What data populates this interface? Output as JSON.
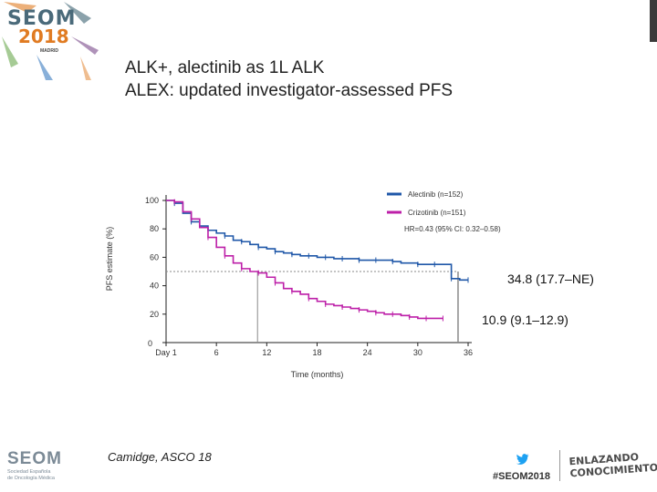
{
  "branding": {
    "logo_line1": "SEOM",
    "logo_line2": "2018",
    "logo_city": "MADRID",
    "org_name": "SEOM",
    "org_sub1": "Sociedad Española",
    "org_sub2": "de Oncología Médica",
    "hashtag": "#SEOM2018",
    "motto_line1": "ENLAZANDO",
    "motto_line2": "CONOCIMIENTO"
  },
  "title": {
    "line1": "ALK+, alectinib as 1L ALK",
    "line2": "ALEX: updated investigator-assessed PFS"
  },
  "citation": "Camidge, ASCO 18",
  "colors": {
    "alectinib": "#1f57a8",
    "crizotinib": "#bd1fa8",
    "median_line": "#8a8a8a"
  },
  "chart_data": {
    "type": "line",
    "xlabel": "Time (months)",
    "ylabel": "PFS estimate (%)",
    "xlim": [
      0,
      36
    ],
    "ylim": [
      0,
      100
    ],
    "xticks": [
      0,
      6,
      12,
      18,
      24,
      30,
      36
    ],
    "xtick_labels": [
      "Day 1",
      "6",
      "12",
      "18",
      "24",
      "30",
      "36"
    ],
    "yticks": [
      0,
      20,
      40,
      60,
      80,
      100
    ],
    "ytick_labels": [
      "0",
      "20",
      "40",
      "60",
      "80",
      "100"
    ],
    "legend_position": "top-right",
    "series": [
      {
        "name": "Alectinib (n=152)",
        "x": [
          0,
          1,
          2,
          3,
          4,
          5,
          6,
          7,
          8,
          9,
          10,
          11,
          12,
          13,
          14,
          15,
          16,
          17,
          18,
          19,
          20,
          21,
          22,
          23,
          24,
          25,
          26,
          27,
          28,
          30,
          31,
          32,
          33,
          34,
          35,
          36
        ],
        "y": [
          100,
          98,
          91,
          85,
          82,
          79,
          77,
          75,
          72,
          71,
          69,
          67,
          66,
          64,
          63,
          62,
          61,
          61,
          60,
          60,
          59,
          59,
          59,
          58,
          58,
          58,
          58,
          57,
          56,
          55,
          55,
          55,
          55,
          45,
          44,
          44
        ]
      },
      {
        "name": "Crizotinib (n=151)",
        "x": [
          0,
          1,
          2,
          3,
          4,
          5,
          6,
          7,
          8,
          9,
          10,
          11,
          12,
          13,
          14,
          15,
          16,
          17,
          18,
          19,
          20,
          21,
          22,
          23,
          24,
          25,
          26,
          27,
          28,
          29,
          30,
          31,
          32,
          33
        ],
        "y": [
          100,
          99,
          92,
          87,
          81,
          74,
          67,
          61,
          56,
          52,
          50,
          49,
          46,
          42,
          38,
          36,
          34,
          31,
          29,
          27,
          26,
          25,
          24,
          23,
          22,
          21,
          20,
          20,
          19,
          18,
          17,
          17,
          17,
          17
        ]
      }
    ],
    "annotations": {
      "hr": "HR=0.43 (95% CI: 0.32–0.58)",
      "alectinib_median": "34.8 (17.7–NE)",
      "crizotinib_median": "10.9 (9.1–12.9)",
      "median_line_y": 50,
      "alectinib_median_x": 34.8,
      "crizotinib_median_x": 10.9
    }
  }
}
